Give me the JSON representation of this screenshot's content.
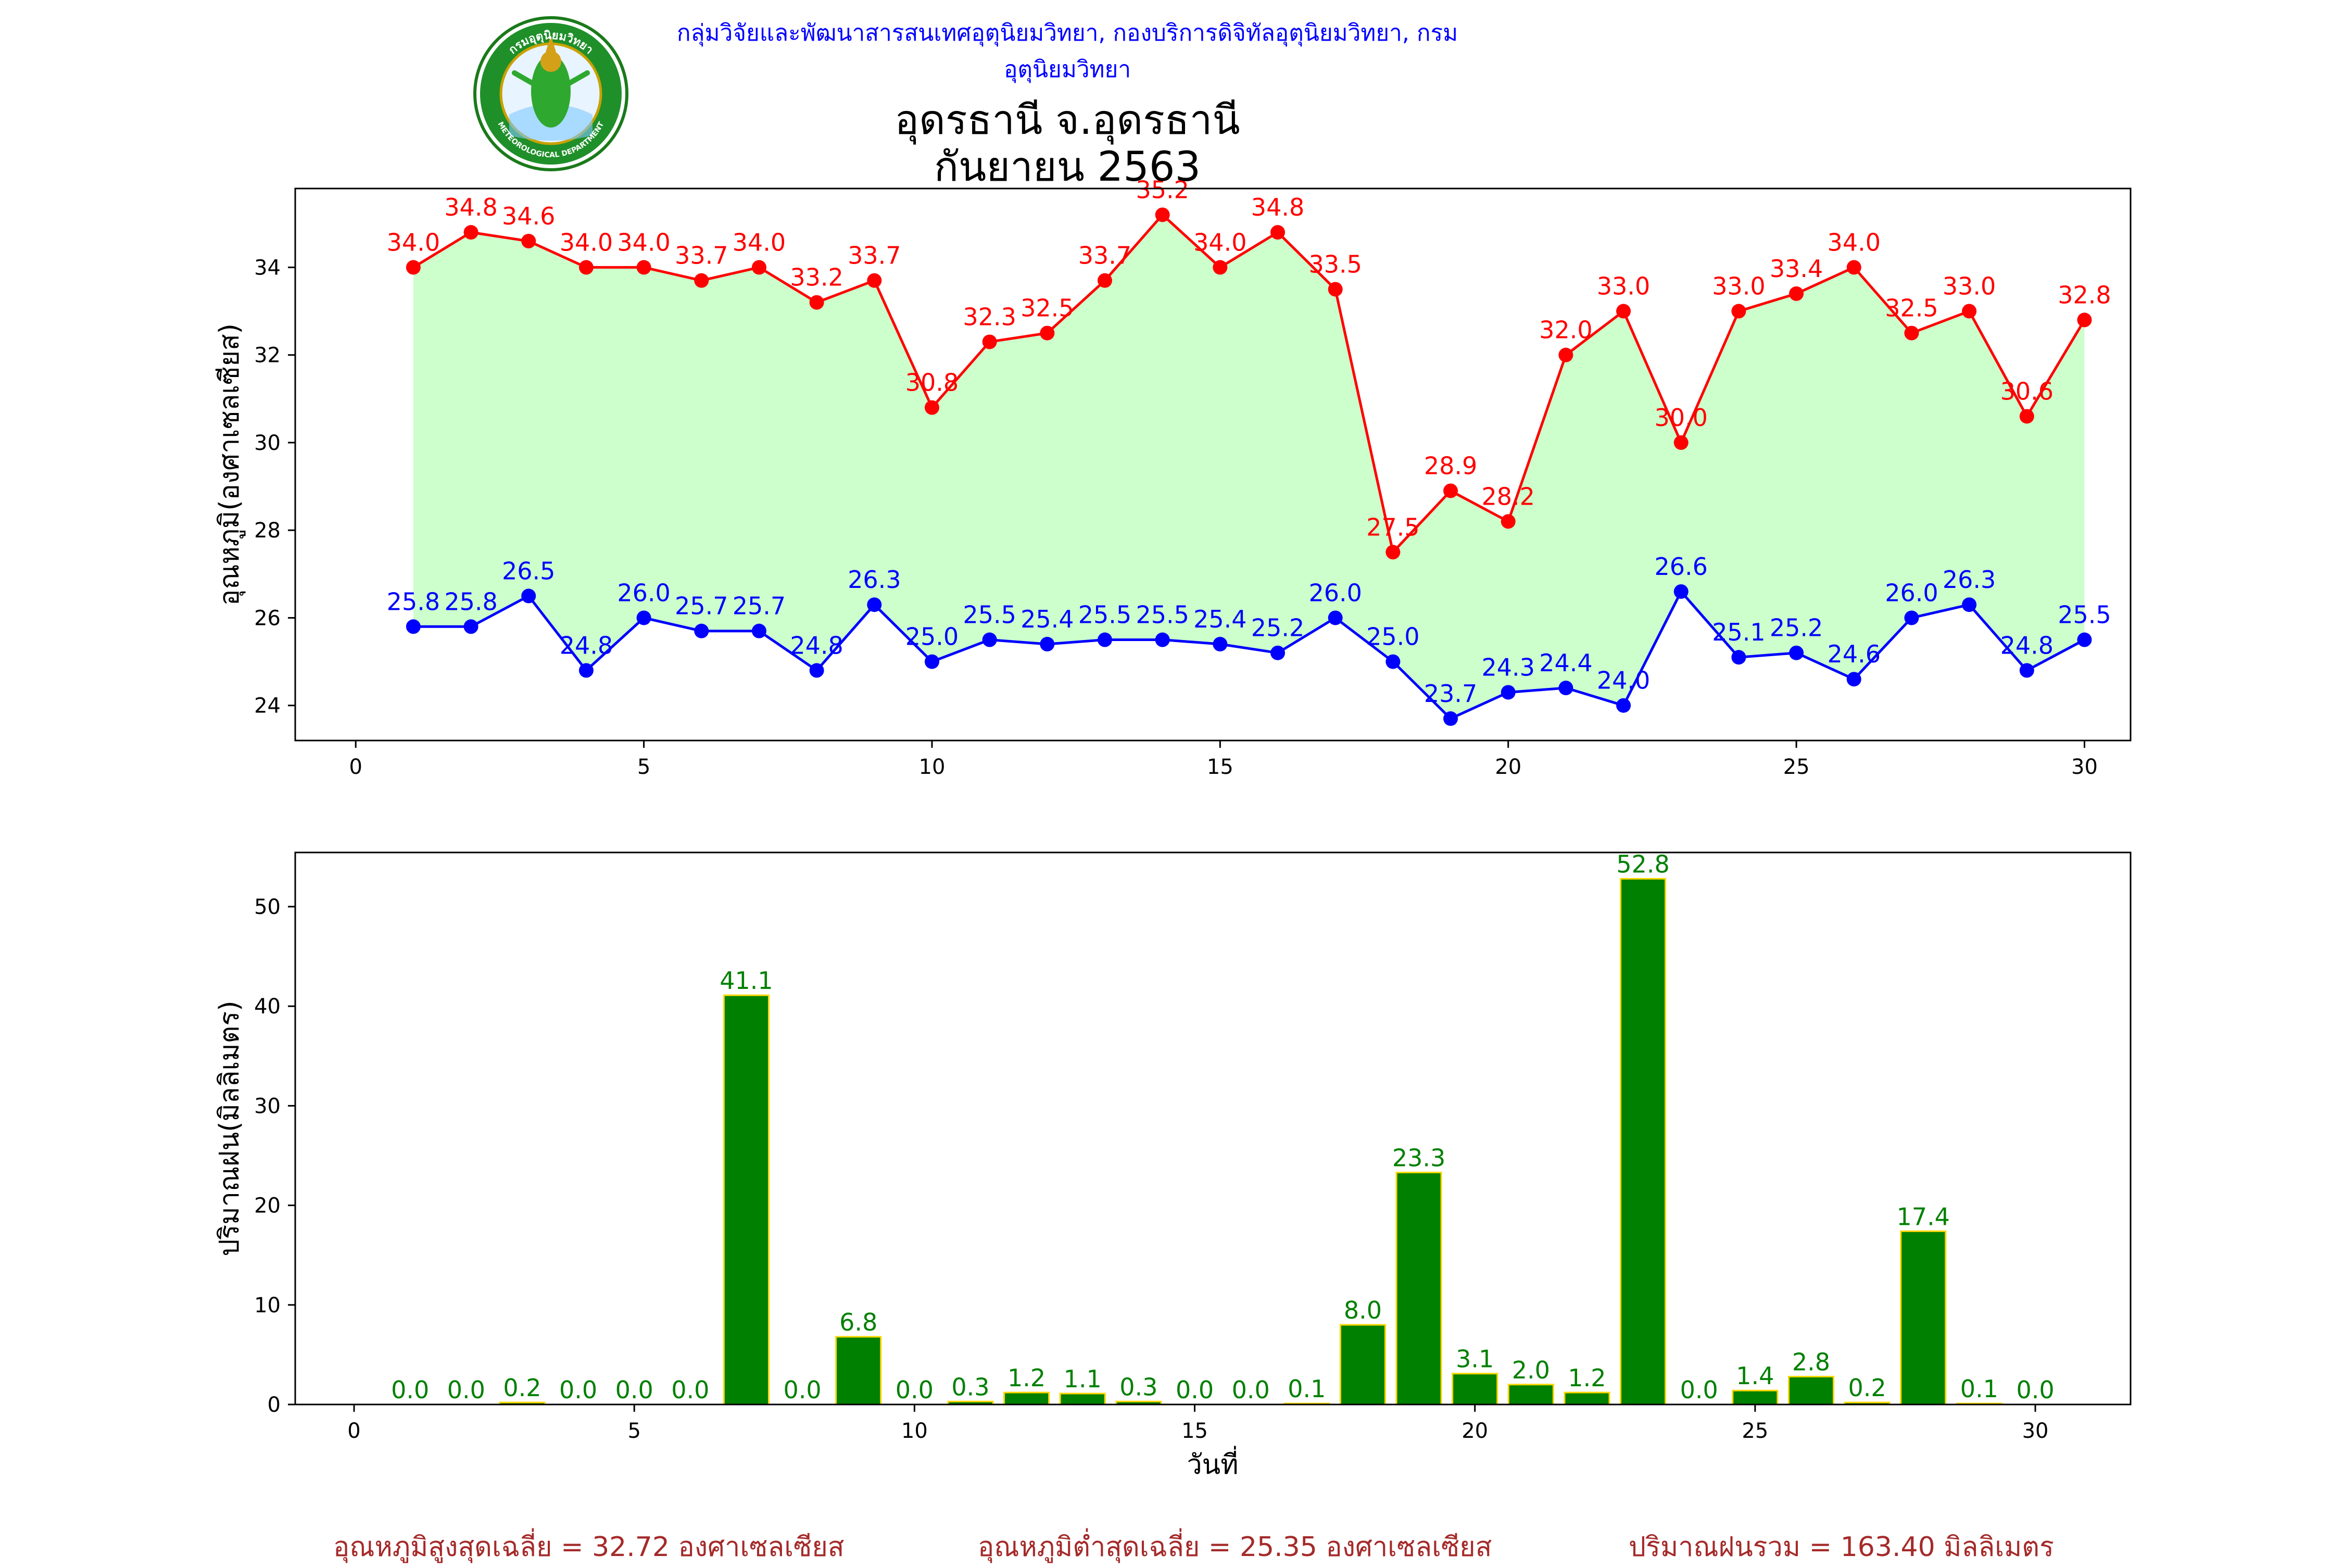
{
  "header": {
    "agency": "กลุ่มวิจัยและพัฒนาสารสนเทศอุตุนิยมวิทยา, กองบริการดิจิทัลอุตุนิยมวิทยา, กรมอุตุนิยมวิทยา",
    "title_line1": "อุดรธานี จ.อุดรธานี",
    "title_line2": "กันยายน 2563",
    "logo_text_top": "กรมอุตุนิยมวิทยา",
    "logo_text_bottom": "METEOROLOGICAL DEPARTMENT"
  },
  "summary": {
    "avg_max": "อุณหภูมิสูงสุดเฉลี่ย = 32.72 องศาเซลเซียส",
    "avg_min": "อุณหภูมิต่ำสุดเฉลี่ย = 25.35 องศาเซลเซียส",
    "total_rain": "ปริมาณฝนรวม = 163.40 มิลลิเมตร"
  },
  "colors": {
    "max_line": "#ff0000",
    "min_line": "#0000ff",
    "fill": "#ccffcc",
    "bar": "#008000",
    "bar_edge": "#ffd700",
    "bar_label": "#008000",
    "summary": "#a52a2a"
  },
  "chart_data": [
    {
      "type": "line",
      "ylabel": "อุณหภูมิ(องศาเซลเซียส)",
      "xlim": [
        -1.05,
        30.8
      ],
      "ylim": [
        23.2,
        35.8
      ],
      "xticks": [
        0,
        5,
        10,
        15,
        20,
        25,
        30
      ],
      "yticks": [
        24,
        26,
        28,
        30,
        32,
        34
      ],
      "x": [
        1,
        2,
        3,
        4,
        5,
        6,
        7,
        8,
        9,
        10,
        11,
        12,
        13,
        14,
        15,
        16,
        17,
        18,
        19,
        20,
        21,
        22,
        23,
        24,
        25,
        26,
        27,
        28,
        29,
        30
      ],
      "series": [
        {
          "key": "max",
          "values": [
            34.0,
            34.8,
            34.6,
            34.0,
            34.0,
            33.7,
            34.0,
            33.2,
            33.7,
            30.8,
            32.3,
            32.5,
            33.7,
            35.2,
            34.0,
            34.8,
            33.5,
            27.5,
            28.9,
            28.2,
            32.0,
            33.0,
            30.0,
            33.0,
            33.4,
            34.0,
            32.5,
            33.0,
            30.6,
            32.8
          ]
        },
        {
          "key": "min",
          "values": [
            25.8,
            25.8,
            26.5,
            24.8,
            26.0,
            25.7,
            25.7,
            24.8,
            26.3,
            25.0,
            25.5,
            25.4,
            25.5,
            25.5,
            25.4,
            25.2,
            26.0,
            25.0,
            23.7,
            24.3,
            24.4,
            24.0,
            26.6,
            25.1,
            25.2,
            24.6,
            26.0,
            26.3,
            24.8,
            25.5
          ]
        }
      ]
    },
    {
      "type": "bar",
      "ylabel": "ปริมาณฝน(มิลลิเมตร)",
      "xlabel": "วันที่",
      "xlim": [
        -1.05,
        31.7
      ],
      "ylim": [
        0,
        55.44
      ],
      "xticks": [
        0,
        5,
        10,
        15,
        20,
        25,
        30
      ],
      "yticks": [
        0,
        10,
        20,
        30,
        40,
        50
      ],
      "categories": [
        1,
        2,
        3,
        4,
        5,
        6,
        7,
        8,
        9,
        10,
        11,
        12,
        13,
        14,
        15,
        16,
        17,
        18,
        19,
        20,
        21,
        22,
        23,
        24,
        25,
        26,
        27,
        28,
        29,
        30
      ],
      "values": [
        0.0,
        0.0,
        0.2,
        0.0,
        0.0,
        0.0,
        41.1,
        0.0,
        6.8,
        0.0,
        0.3,
        1.2,
        1.1,
        0.3,
        0.0,
        0.0,
        0.1,
        8.0,
        23.3,
        3.1,
        2.0,
        1.2,
        52.8,
        0.0,
        1.4,
        2.8,
        0.2,
        17.4,
        0.1,
        0.0
      ]
    }
  ]
}
